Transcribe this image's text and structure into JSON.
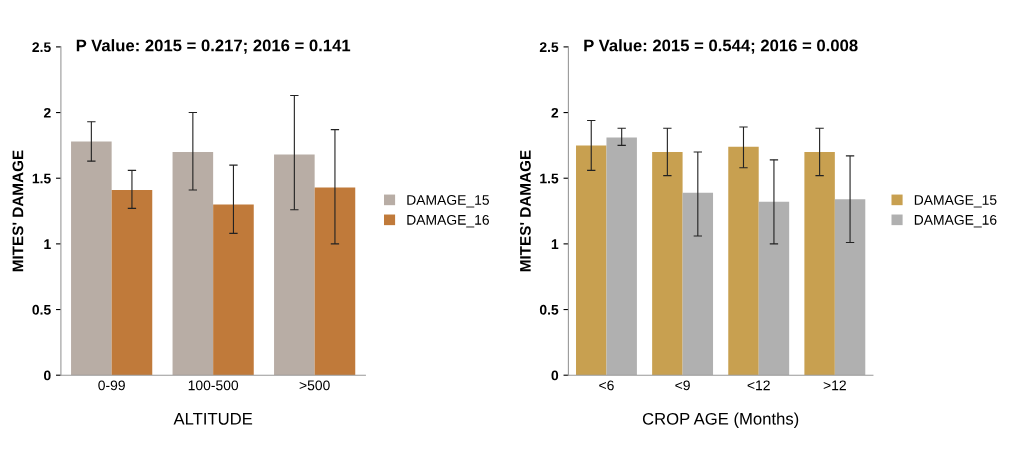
{
  "chart_data": [
    {
      "type": "bar",
      "title": "P Value: 2015 = 0.217; 2016 = 0.141",
      "xlabel": "ALTITUDE",
      "ylabel": "MITES' DAMAGE",
      "categories": [
        "0-99",
        "100-500",
        ">500"
      ],
      "series": [
        {
          "name": "DAMAGE_15",
          "color": "#b8ada5",
          "values": [
            1.78,
            1.7,
            1.68
          ],
          "errors": [
            [
              1.63,
              1.93
            ],
            [
              1.41,
              2.0
            ],
            [
              1.26,
              2.13
            ]
          ]
        },
        {
          "name": "DAMAGE_16",
          "color": "#c07a3a",
          "values": [
            1.41,
            1.3,
            1.43
          ],
          "errors": [
            [
              1.27,
              1.56
            ],
            [
              1.08,
              1.6
            ],
            [
              1.0,
              1.87
            ]
          ]
        }
      ],
      "ylim": [
        0,
        2.5
      ],
      "yticks": [
        0,
        0.5,
        1,
        1.5,
        2,
        2.5
      ],
      "legend": "right",
      "grid": false
    },
    {
      "type": "bar",
      "title": "P Value: 2015 = 0.544; 2016 = 0.008",
      "xlabel": "CROP AGE (Months)",
      "ylabel": "MITES' DAMAGE",
      "categories": [
        "<6",
        "<9",
        "<12",
        ">12"
      ],
      "series": [
        {
          "name": "DAMAGE_15",
          "color": "#c8a050",
          "values": [
            1.75,
            1.7,
            1.74,
            1.7
          ],
          "errors": [
            [
              1.56,
              1.94
            ],
            [
              1.52,
              1.88
            ],
            [
              1.58,
              1.89
            ],
            [
              1.52,
              1.88
            ]
          ]
        },
        {
          "name": "DAMAGE_16",
          "color": "#b0b0b0",
          "values": [
            1.81,
            1.39,
            1.32,
            1.34
          ],
          "errors": [
            [
              1.75,
              1.88
            ],
            [
              1.06,
              1.7
            ],
            [
              1.0,
              1.64
            ],
            [
              1.01,
              1.67
            ]
          ]
        }
      ],
      "ylim": [
        0,
        2.5
      ],
      "yticks": [
        0,
        0.5,
        1,
        1.5,
        2,
        2.5
      ],
      "legend": "right",
      "grid": false
    }
  ]
}
